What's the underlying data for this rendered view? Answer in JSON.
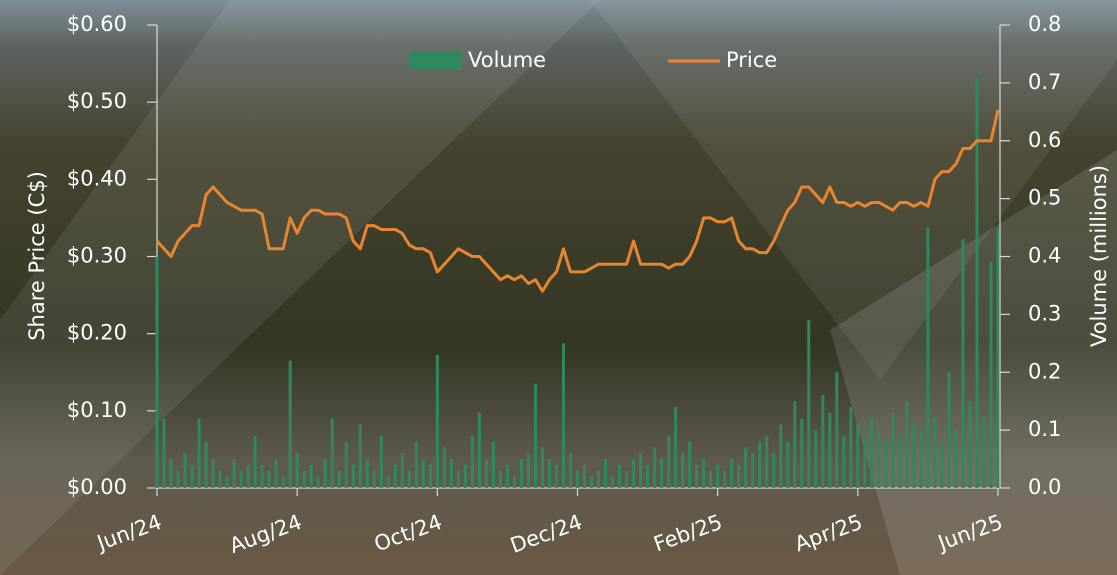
{
  "chart_data": {
    "type": "combo",
    "categories": [
      "Jun/24",
      null,
      null,
      null,
      null,
      null,
      null,
      null,
      null,
      null,
      null,
      null,
      null,
      null,
      null,
      null,
      null,
      null,
      null,
      null,
      "Aug/24",
      null,
      null,
      null,
      null,
      null,
      null,
      null,
      null,
      null,
      null,
      null,
      null,
      null,
      null,
      null,
      null,
      null,
      null,
      null,
      "Oct/24",
      null,
      null,
      null,
      null,
      null,
      null,
      null,
      null,
      null,
      null,
      null,
      null,
      null,
      null,
      null,
      null,
      null,
      null,
      null,
      "Dec/24",
      null,
      null,
      null,
      null,
      null,
      null,
      null,
      null,
      null,
      null,
      null,
      null,
      null,
      null,
      null,
      null,
      null,
      null,
      null,
      "Feb/25",
      null,
      null,
      null,
      null,
      null,
      null,
      null,
      null,
      null,
      null,
      null,
      null,
      null,
      null,
      null,
      null,
      null,
      null,
      null,
      "Apr/25",
      null,
      null,
      null,
      null,
      null,
      null,
      null,
      null,
      null,
      null,
      null,
      null,
      null,
      null,
      null,
      null,
      null,
      null,
      null,
      "Jun/25"
    ],
    "series": [
      {
        "name": "Volume",
        "type": "bar",
        "axis": "y2",
        "color": "#2e8a5e",
        "values": [
          0.4,
          0.12,
          0.05,
          0.03,
          0.06,
          0.04,
          0.12,
          0.08,
          0.05,
          0.03,
          0.02,
          0.05,
          0.03,
          0.04,
          0.09,
          0.04,
          0.03,
          0.05,
          0.02,
          0.22,
          0.06,
          0.03,
          0.04,
          0.02,
          0.05,
          0.12,
          0.03,
          0.08,
          0.04,
          0.11,
          0.05,
          0.03,
          0.09,
          0.02,
          0.04,
          0.06,
          0.03,
          0.08,
          0.05,
          0.04,
          0.23,
          0.07,
          0.05,
          0.03,
          0.04,
          0.09,
          0.13,
          0.05,
          0.08,
          0.03,
          0.04,
          0.02,
          0.05,
          0.06,
          0.18,
          0.07,
          0.05,
          0.04,
          0.25,
          0.06,
          0.03,
          0.04,
          0.02,
          0.03,
          0.05,
          0.02,
          0.04,
          0.03,
          0.05,
          0.06,
          0.04,
          0.07,
          0.05,
          0.09,
          0.14,
          0.06,
          0.08,
          0.04,
          0.05,
          0.03,
          0.04,
          0.03,
          0.05,
          0.04,
          0.07,
          0.06,
          0.08,
          0.09,
          0.06,
          0.11,
          0.08,
          0.15,
          0.12,
          0.29,
          0.1,
          0.16,
          0.13,
          0.2,
          0.09,
          0.14,
          0.11,
          0.09,
          0.12,
          0.1,
          0.08,
          0.13,
          0.09,
          0.15,
          0.11,
          0.1,
          0.45,
          0.12,
          0.08,
          0.2,
          0.1,
          0.43,
          0.15,
          0.71,
          0.12,
          0.39,
          0.45
        ]
      },
      {
        "name": "Price",
        "type": "line",
        "color": "#e8852e",
        "values": [
          0.32,
          0.31,
          0.3,
          0.32,
          0.33,
          0.34,
          0.34,
          0.38,
          0.39,
          0.38,
          0.37,
          0.365,
          0.36,
          0.36,
          0.36,
          0.355,
          0.31,
          0.31,
          0.31,
          0.35,
          0.33,
          0.35,
          0.36,
          0.36,
          0.355,
          0.355,
          0.355,
          0.35,
          0.32,
          0.31,
          0.34,
          0.34,
          0.335,
          0.335,
          0.335,
          0.33,
          0.315,
          0.31,
          0.31,
          0.305,
          0.28,
          0.29,
          0.3,
          0.31,
          0.305,
          0.3,
          0.3,
          0.29,
          0.28,
          0.27,
          0.275,
          0.27,
          0.275,
          0.265,
          0.27,
          0.255,
          0.27,
          0.28,
          0.31,
          0.28,
          0.28,
          0.28,
          0.285,
          0.29,
          0.29,
          0.29,
          0.29,
          0.29,
          0.32,
          0.29,
          0.29,
          0.29,
          0.29,
          0.285,
          0.29,
          0.29,
          0.3,
          0.32,
          0.35,
          0.35,
          0.345,
          0.345,
          0.35,
          0.32,
          0.31,
          0.31,
          0.305,
          0.305,
          0.32,
          0.34,
          0.36,
          0.37,
          0.39,
          0.39,
          0.38,
          0.37,
          0.39,
          0.37,
          0.37,
          0.365,
          0.37,
          0.365,
          0.37,
          0.37,
          0.365,
          0.36,
          0.37,
          0.37,
          0.365,
          0.37,
          0.365,
          0.4,
          0.41,
          0.41,
          0.42,
          0.44,
          0.44,
          0.45,
          0.45,
          0.45,
          0.49
        ]
      }
    ],
    "y_label": "Share Price (C$)",
    "y2_label": "Volume (millions)",
    "ylim": [
      0,
      0.6
    ],
    "yticks": [
      {
        "value": 0,
        "label": "$0.00"
      },
      {
        "value": 0.1,
        "label": "$0.10"
      },
      {
        "value": 0.2,
        "label": "$0.20"
      },
      {
        "value": 0.3,
        "label": "$0.30"
      },
      {
        "value": 0.4,
        "label": "$0.40"
      },
      {
        "value": 0.5,
        "label": "$0.50"
      },
      {
        "value": 0.6,
        "label": "$0.60"
      }
    ],
    "y2lim": [
      0,
      0.8
    ],
    "y2ticks": [
      {
        "value": 0,
        "label": "0.0"
      },
      0.1,
      0.2,
      0.3,
      0.4,
      0.5,
      0.6,
      0.7,
      0.8
    ],
    "legend": "top"
  }
}
